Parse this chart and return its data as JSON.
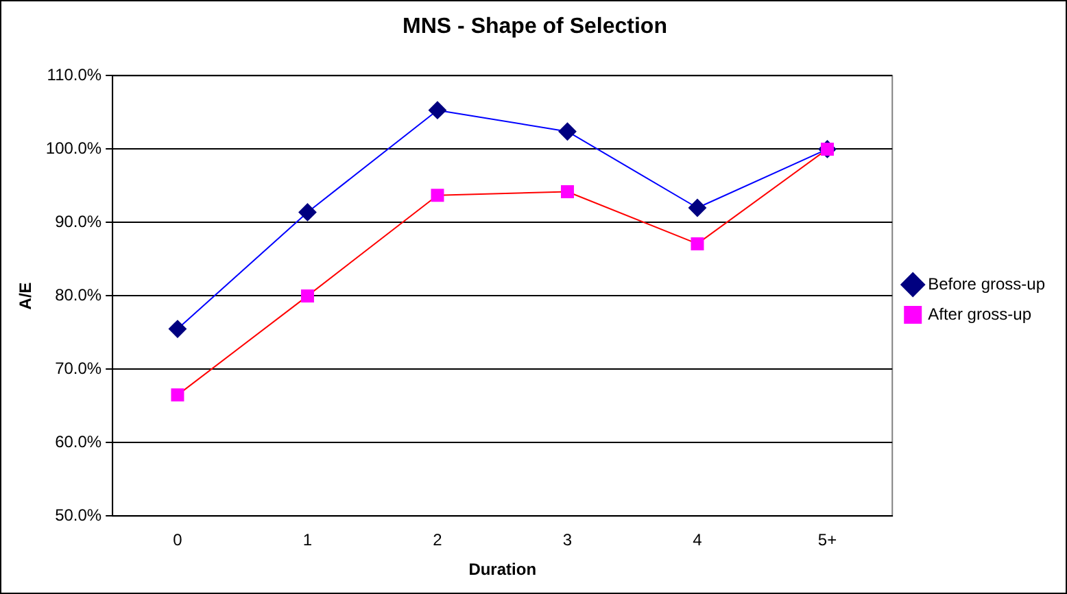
{
  "chart_data": {
    "type": "line",
    "title": "MNS - Shape of Selection",
    "xlabel": "Duration",
    "ylabel": "A/E",
    "categories": [
      "0",
      "1",
      "2",
      "3",
      "4",
      "5+"
    ],
    "series": [
      {
        "name": "Before gross-up",
        "color": "#000080",
        "marker": "diamond",
        "values": [
          75.5,
          91.4,
          105.3,
          102.4,
          92.0,
          100.0
        ]
      },
      {
        "name": "After gross-up",
        "color": "#ff00ff",
        "marker": "square",
        "values": [
          66.5,
          80.0,
          93.7,
          94.2,
          87.1,
          100.0
        ]
      }
    ],
    "ylim": [
      50,
      110
    ],
    "yticks": [
      {
        "value": 50,
        "label": "50.0%"
      },
      {
        "value": 60,
        "label": "60.0%"
      },
      {
        "value": 70,
        "label": "70.0%"
      },
      {
        "value": 80,
        "label": "80.0%"
      },
      {
        "value": 90,
        "label": "90.0%"
      },
      {
        "value": 100,
        "label": "100.0%"
      },
      {
        "value": 110,
        "label": "110.0%"
      }
    ],
    "grid": "y",
    "legend": "right",
    "line_style": "solid"
  }
}
